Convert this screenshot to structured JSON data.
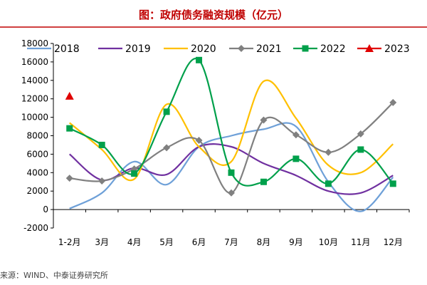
{
  "header": {
    "title": "图：政府债务融资规模（亿元）"
  },
  "source": "来源：WIND、中泰证券研究所",
  "colors": {
    "title": "#c00000",
    "divider": "#c00000",
    "grid": "#d9d9d9"
  },
  "chart_data": {
    "type": "line",
    "categories": [
      "1-2月",
      "3月",
      "4月",
      "5月",
      "6月",
      "7月",
      "8月",
      "9月",
      "10月",
      "11月",
      "12月"
    ],
    "ylim": [
      -2000,
      18000
    ],
    "yticks": [
      -2000,
      0,
      2000,
      4000,
      6000,
      8000,
      10000,
      12000,
      14000,
      16000,
      18000
    ],
    "legend": "top",
    "grid": false,
    "series": [
      {
        "name": "2018",
        "color": "#6ea0d8",
        "marker": "none",
        "values": [
          100,
          1800,
          5200,
          2700,
          6800,
          8000,
          8700,
          9000,
          3000,
          -200,
          3500
        ]
      },
      {
        "name": "2019",
        "color": "#7030a0",
        "marker": "none",
        "values": [
          6000,
          3200,
          4500,
          3800,
          6800,
          6800,
          5000,
          3700,
          2000,
          1800,
          3700
        ]
      },
      {
        "name": "2020",
        "color": "#ffc000",
        "marker": "none",
        "values": [
          9400,
          6500,
          3300,
          11400,
          6800,
          5200,
          13900,
          9900,
          4800,
          4000,
          7100
        ]
      },
      {
        "name": "2021",
        "color": "#808080",
        "marker": "diamond",
        "values": [
          3400,
          3100,
          4400,
          6700,
          7500,
          1800,
          9700,
          8100,
          6200,
          8200,
          11600
        ]
      },
      {
        "name": "2022",
        "color": "#00a04b",
        "marker": "square",
        "values": [
          8800,
          7000,
          3900,
          10600,
          16200,
          4000,
          3000,
          5500,
          2800,
          6500,
          2800
        ]
      },
      {
        "name": "2023",
        "color": "#e00000",
        "marker": "triangle",
        "values": [
          12300,
          null,
          null,
          null,
          null,
          null,
          null,
          null,
          null,
          null,
          null
        ]
      }
    ]
  }
}
